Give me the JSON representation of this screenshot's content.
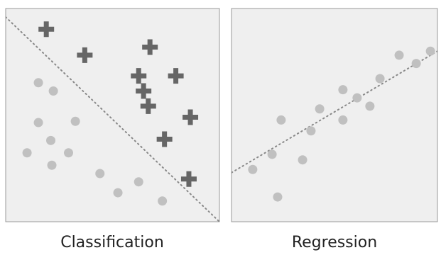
{
  "colors": {
    "panel_fill": "#efefef",
    "panel_border": "#999999",
    "plus": "#666666",
    "dot": "#c0c0c0",
    "line": "#888888"
  },
  "icons": {
    "plus_marker": "plus-icon",
    "dot_marker": "circle-icon"
  },
  "panels": [
    {
      "caption": "Classification",
      "plus_points": [
        [
          0.19,
          0.097
        ],
        [
          0.37,
          0.219
        ],
        [
          0.675,
          0.181
        ],
        [
          0.622,
          0.316
        ],
        [
          0.796,
          0.316
        ],
        [
          0.645,
          0.387
        ],
        [
          0.667,
          0.458
        ],
        [
          0.743,
          0.613
        ],
        [
          0.864,
          0.51
        ],
        [
          0.857,
          0.8
        ]
      ],
      "dot_points": [
        [
          0.153,
          0.348
        ],
        [
          0.223,
          0.387
        ],
        [
          0.153,
          0.535
        ],
        [
          0.326,
          0.529
        ],
        [
          0.211,
          0.619
        ],
        [
          0.1,
          0.677
        ],
        [
          0.294,
          0.677
        ],
        [
          0.216,
          0.735
        ],
        [
          0.441,
          0.774
        ],
        [
          0.622,
          0.813
        ],
        [
          0.525,
          0.864
        ],
        [
          0.733,
          0.903
        ]
      ],
      "divider": [
        [
          0.0,
          0.04
        ],
        [
          1.0,
          1.0
        ]
      ]
    },
    {
      "caption": "Regression",
      "plus_points": [],
      "dot_points": [
        [
          0.103,
          0.755
        ],
        [
          0.197,
          0.684
        ],
        [
          0.241,
          0.523
        ],
        [
          0.224,
          0.884
        ],
        [
          0.345,
          0.71
        ],
        [
          0.386,
          0.574
        ],
        [
          0.428,
          0.471
        ],
        [
          0.541,
          0.381
        ],
        [
          0.61,
          0.419
        ],
        [
          0.541,
          0.523
        ],
        [
          0.672,
          0.458
        ],
        [
          0.721,
          0.329
        ],
        [
          0.814,
          0.219
        ],
        [
          0.897,
          0.258
        ],
        [
          0.966,
          0.2
        ]
      ],
      "divider": [
        [
          0.0,
          0.77
        ],
        [
          1.0,
          0.2
        ]
      ]
    }
  ]
}
